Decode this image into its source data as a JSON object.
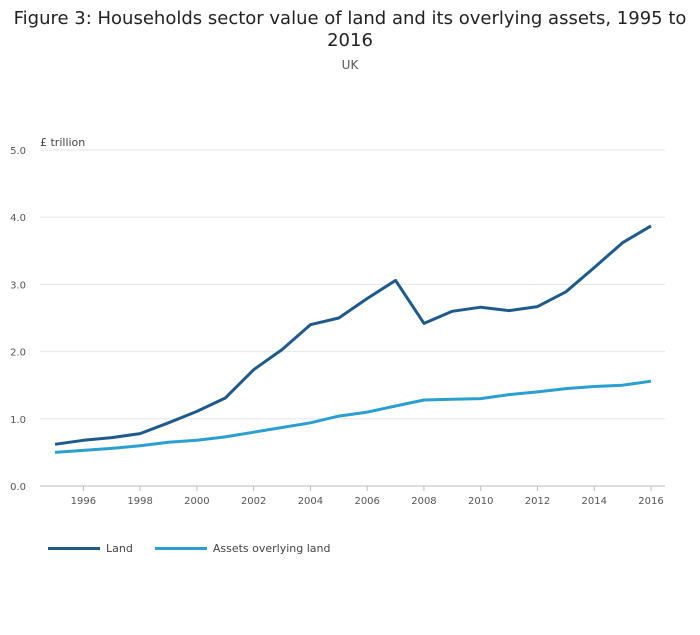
{
  "title": "Figure 3: Households sector value of land and its overlying assets, 1995 to 2016",
  "subtitle": "UK",
  "colors": {
    "land": "#1f5a8c",
    "assets": "#2a9fd0",
    "grid": "#e6e6e6"
  },
  "chart_data": {
    "type": "line",
    "ylabel": "£ trillion",
    "xlabel": "",
    "ylim": [
      0,
      5
    ],
    "yticks": [
      "0.0",
      "1.0",
      "2.0",
      "3.0",
      "4.0",
      "5.0"
    ],
    "xticks": [
      "1996",
      "1998",
      "2000",
      "2002",
      "2004",
      "2006",
      "2008",
      "2010",
      "2012",
      "2014",
      "2016"
    ],
    "x": [
      1995,
      1996,
      1997,
      1998,
      1999,
      2000,
      2001,
      2002,
      2003,
      2004,
      2005,
      2006,
      2007,
      2008,
      2009,
      2010,
      2011,
      2012,
      2013,
      2014,
      2015,
      2016
    ],
    "series": [
      {
        "name": "Land",
        "values": [
          0.62,
          0.68,
          0.72,
          0.78,
          0.94,
          1.11,
          1.31,
          1.73,
          2.03,
          2.4,
          2.5,
          2.79,
          3.06,
          2.42,
          2.6,
          2.66,
          2.61,
          2.67,
          2.89,
          3.25,
          3.62,
          3.87
        ]
      },
      {
        "name": "Assets overlying land",
        "values": [
          0.5,
          0.53,
          0.56,
          0.6,
          0.65,
          0.68,
          0.73,
          0.8,
          0.87,
          0.94,
          1.04,
          1.1,
          1.19,
          1.28,
          1.29,
          1.3,
          1.36,
          1.4,
          1.45,
          1.48,
          1.5,
          1.56
        ]
      }
    ],
    "grid": true,
    "legend_position": "bottom-left"
  }
}
